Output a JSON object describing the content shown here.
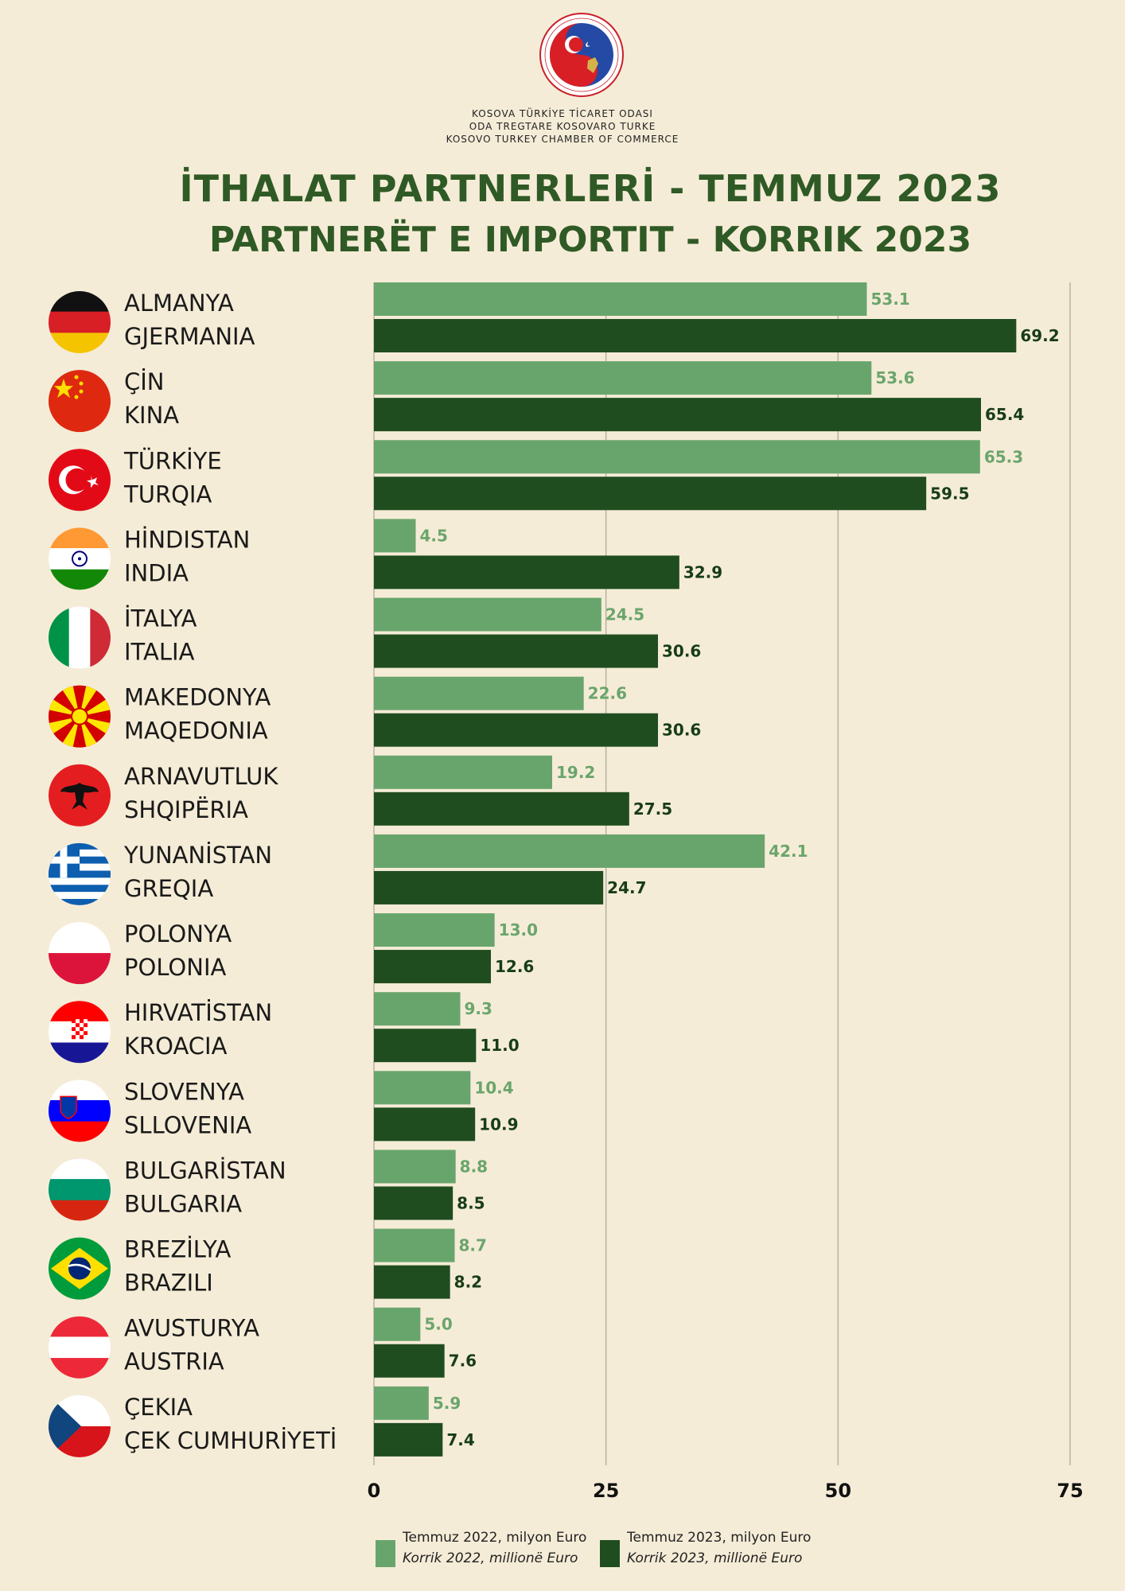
{
  "header": {
    "org_line1": "KOSOVA TÜRKİYE TİCARET ODASI",
    "org_line2": "ODA TREGTARE KOSOVARO TURKE",
    "org_line3": "KOSOVO TURKEY CHAMBER OF COMMERCE",
    "logo_ring_text": "ODA TREGTARE KOSOVARO TURKE • KOSOVA TÜRKİYE TİCARET ODASI"
  },
  "chart_data": {
    "type": "bar",
    "orientation": "horizontal",
    "title": "İTHALAT PARTNERLERİ - TEMMUZ 2023",
    "subtitle": "PARTNERËT E IMPORTIT - KORRIK 2023",
    "categories": [
      {
        "tr": "ALMANYA",
        "sq": "GJERMANIA",
        "flag": "germany"
      },
      {
        "tr": "ÇİN",
        "sq": "KINA",
        "flag": "china"
      },
      {
        "tr": "TÜRKİYE",
        "sq": "TURQIA",
        "flag": "turkey"
      },
      {
        "tr": "HİNDISTAN",
        "sq": "INDIA",
        "flag": "india"
      },
      {
        "tr": "İTALYA",
        "sq": "ITALIA",
        "flag": "italy"
      },
      {
        "tr": "MAKEDONYA",
        "sq": "MAQEDONIA",
        "flag": "macedonia"
      },
      {
        "tr": "ARNAVUTLUK",
        "sq": "SHQIPËRIA",
        "flag": "albania"
      },
      {
        "tr": "YUNANİSTAN",
        "sq": "GREQIA",
        "flag": "greece"
      },
      {
        "tr": "POLONYA",
        "sq": "POLONIA",
        "flag": "poland"
      },
      {
        "tr": "HIRVATİSTAN",
        "sq": "KROACIA",
        "flag": "croatia"
      },
      {
        "tr": "SLOVENYA",
        "sq": "SLLOVENIA",
        "flag": "slovenia"
      },
      {
        "tr": "BULGARİSTAN",
        "sq": "BULGARIA",
        "flag": "bulgaria"
      },
      {
        "tr": "BREZİLYA",
        "sq": "BRAZILI",
        "flag": "brazil"
      },
      {
        "tr": "AVUSTURYA",
        "sq": "AUSTRIA",
        "flag": "austria"
      },
      {
        "tr": "ÇEKIA",
        "sq": "ÇEK CUMHURİYETİ",
        "flag": "czechia"
      }
    ],
    "series": [
      {
        "name": "Temmuz 2022, milyon Euro",
        "name_alt": "Korrik 2022, millionë Euro",
        "color": "#68a56c",
        "values": [
          53.1,
          53.6,
          65.3,
          4.5,
          24.5,
          22.6,
          19.2,
          42.1,
          13.0,
          9.3,
          10.4,
          8.8,
          8.7,
          5.0,
          5.9
        ],
        "labels": [
          "53.1",
          "53.6",
          "65.3",
          "4.5",
          "24.5",
          "22.6",
          "19.2",
          "42.1",
          "13.0",
          "9.3",
          "10.4",
          "8.8",
          "8.7",
          "5.0",
          "5.9"
        ]
      },
      {
        "name": "Temmuz 2023, milyon Euro",
        "name_alt": "Korrik 2023, millionë Euro",
        "color": "#1f4d1f",
        "values": [
          69.2,
          65.4,
          59.5,
          32.9,
          30.6,
          30.6,
          27.5,
          24.7,
          12.6,
          11.0,
          10.9,
          8.5,
          8.2,
          7.6,
          7.4
        ],
        "labels": [
          "69.2",
          "65.4",
          "59.5",
          "32.9",
          "30.6",
          "30.6",
          "27.5",
          "24.7",
          "12.6",
          "11.0",
          "10.9",
          "8.5",
          "8.2",
          "7.6",
          "7.4"
        ]
      }
    ],
    "xlim": [
      0,
      75
    ],
    "xticks": [
      "0",
      "25",
      "50",
      "75"
    ],
    "xtick_values": [
      0,
      25,
      50,
      75
    ],
    "grid": true,
    "legend": "bottom"
  }
}
